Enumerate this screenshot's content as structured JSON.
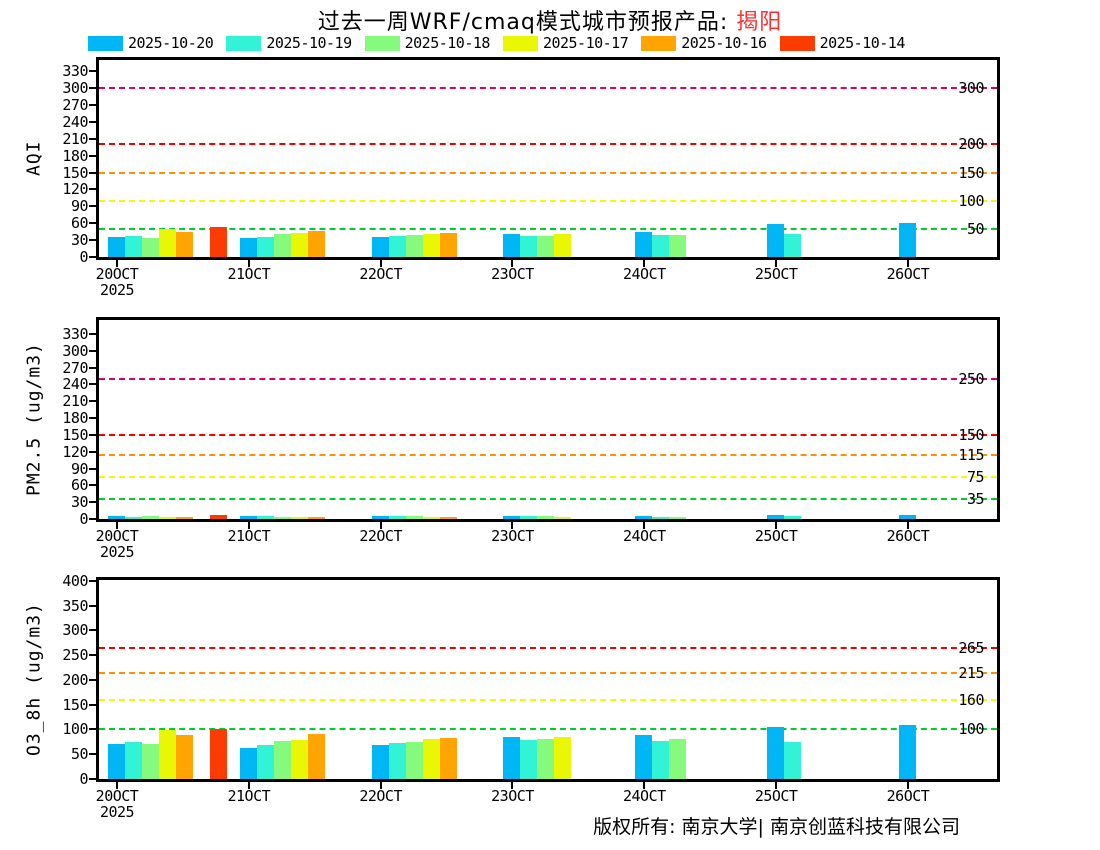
{
  "title": {
    "text": "过去一周WRF/cmaq模式城市预报产品: ",
    "highlight": "揭阳",
    "highlight_color": "#ff2d2d"
  },
  "legend": {
    "items": [
      {
        "label": "2025-10-20",
        "color": "#00b6f5"
      },
      {
        "label": "2025-10-19",
        "color": "#33f3d6"
      },
      {
        "label": "2025-10-18",
        "color": "#85fa7d"
      },
      {
        "label": "2025-10-17",
        "color": "#e9f604"
      },
      {
        "label": "2025-10-16",
        "color": "#ffa400"
      },
      {
        "label": "2025-10-14",
        "color": "#fb3c01"
      }
    ]
  },
  "footer": {
    "copyright": "版权所有: 南京大学| 南京创蓝科技有限公司"
  },
  "chart_data": [
    {
      "type": "bar",
      "title": "AQI panel",
      "ylabel": "AQI",
      "ylim": [
        0,
        330
      ],
      "yticks": [
        0,
        30,
        60,
        90,
        120,
        150,
        180,
        210,
        240,
        270,
        300,
        330
      ],
      "categories": [
        "20OCT",
        "21OCT",
        "22OCT",
        "23OCT",
        "24OCT",
        "25OCT",
        "26OCT"
      ],
      "x_year_label": "2025",
      "grid": false,
      "legend_position": "top",
      "series": [
        {
          "name": "2025-10-20",
          "color": "#00b6f5",
          "values": [
            35,
            33,
            35,
            41,
            45,
            58,
            61
          ]
        },
        {
          "name": "2025-10-19",
          "color": "#33f3d6",
          "values": [
            37,
            36,
            37,
            38,
            39,
            40,
            null
          ]
        },
        {
          "name": "2025-10-18",
          "color": "#85fa7d",
          "values": [
            34,
            40,
            39,
            38,
            39,
            null,
            null
          ]
        },
        {
          "name": "2025-10-17",
          "color": "#e9f604",
          "values": [
            50,
            42,
            40,
            41,
            null,
            null,
            null
          ]
        },
        {
          "name": "2025-10-16",
          "color": "#ffa400",
          "values": [
            44,
            47,
            42,
            null,
            null,
            null,
            null
          ]
        },
        {
          "name": "2025-10-14",
          "color": "#fb3c01",
          "values": [
            53,
            null,
            null,
            null,
            null,
            null,
            null
          ]
        }
      ],
      "guidelines": [
        {
          "value": 50,
          "color": "#00cc33",
          "label": "50"
        },
        {
          "value": 100,
          "color": "#f8f800",
          "label": "100"
        },
        {
          "value": 150,
          "color": "#ff9100",
          "label": "150"
        },
        {
          "value": 200,
          "color": "#f20000",
          "label": "200"
        },
        {
          "value": 300,
          "color": "#d6006e",
          "label": "300"
        }
      ]
    },
    {
      "type": "bar",
      "title": "PM2.5 panel",
      "ylabel": "PM2.5 (ug/m3)",
      "ylim": [
        0,
        330
      ],
      "yticks": [
        0,
        30,
        60,
        90,
        120,
        150,
        180,
        210,
        240,
        270,
        300,
        330
      ],
      "categories": [
        "20OCT",
        "21OCT",
        "22OCT",
        "23OCT",
        "24OCT",
        "25OCT",
        "26OCT"
      ],
      "x_year_label": "2025",
      "grid": false,
      "legend_position": "top",
      "series": [
        {
          "name": "2025-10-20",
          "color": "#00b6f5",
          "values": [
            6,
            5,
            6,
            5,
            5,
            8,
            8
          ]
        },
        {
          "name": "2025-10-19",
          "color": "#33f3d6",
          "values": [
            4,
            5,
            5,
            5,
            3,
            6,
            null
          ]
        },
        {
          "name": "2025-10-18",
          "color": "#85fa7d",
          "values": [
            6,
            4,
            6,
            5,
            3,
            null,
            null
          ]
        },
        {
          "name": "2025-10-17",
          "color": "#e9f604",
          "values": [
            4,
            4,
            3,
            4,
            null,
            null,
            null
          ]
        },
        {
          "name": "2025-10-16",
          "color": "#ffa400",
          "values": [
            4,
            4,
            4,
            null,
            null,
            null,
            null
          ]
        },
        {
          "name": "2025-10-14",
          "color": "#fb3c01",
          "values": [
            8,
            null,
            null,
            null,
            null,
            null,
            null
          ]
        }
      ],
      "guidelines": [
        {
          "value": 35,
          "color": "#00cc33",
          "label": "35"
        },
        {
          "value": 75,
          "color": "#f8f800",
          "label": "75"
        },
        {
          "value": 115,
          "color": "#ff9100",
          "label": "115"
        },
        {
          "value": 150,
          "color": "#f20000",
          "label": "150"
        },
        {
          "value": 250,
          "color": "#d6006e",
          "label": "250"
        }
      ]
    },
    {
      "type": "bar",
      "title": "O3_8h panel",
      "ylabel": "O3_8h (ug/m3)",
      "ylim": [
        0,
        400
      ],
      "yticks": [
        0,
        50,
        100,
        150,
        200,
        250,
        300,
        350,
        400
      ],
      "categories": [
        "20OCT",
        "21OCT",
        "22OCT",
        "23OCT",
        "24OCT",
        "25OCT",
        "26OCT"
      ],
      "x_year_label": "2025",
      "grid": false,
      "legend_position": "top",
      "series": [
        {
          "name": "2025-10-20",
          "color": "#00b6f5",
          "values": [
            71,
            63,
            68,
            84,
            89,
            105,
            110
          ]
        },
        {
          "name": "2025-10-19",
          "color": "#33f3d6",
          "values": [
            74,
            69,
            73,
            79,
            77,
            75,
            null
          ]
        },
        {
          "name": "2025-10-18",
          "color": "#85fa7d",
          "values": [
            71,
            76,
            75,
            80,
            80,
            null,
            null
          ]
        },
        {
          "name": "2025-10-17",
          "color": "#e9f604",
          "values": [
            98,
            79,
            80,
            85,
            null,
            null,
            null
          ]
        },
        {
          "name": "2025-10-16",
          "color": "#ffa400",
          "values": [
            89,
            91,
            83,
            null,
            null,
            null,
            null
          ]
        },
        {
          "name": "2025-10-14",
          "color": "#fb3c01",
          "values": [
            102,
            null,
            null,
            null,
            null,
            null,
            null
          ]
        }
      ],
      "guidelines": [
        {
          "value": 100,
          "color": "#00cc33",
          "label": "100"
        },
        {
          "value": 160,
          "color": "#f8f800",
          "label": "160"
        },
        {
          "value": 215,
          "color": "#ff9100",
          "label": "215"
        },
        {
          "value": 265,
          "color": "#f20000",
          "label": "265"
        }
      ]
    }
  ]
}
